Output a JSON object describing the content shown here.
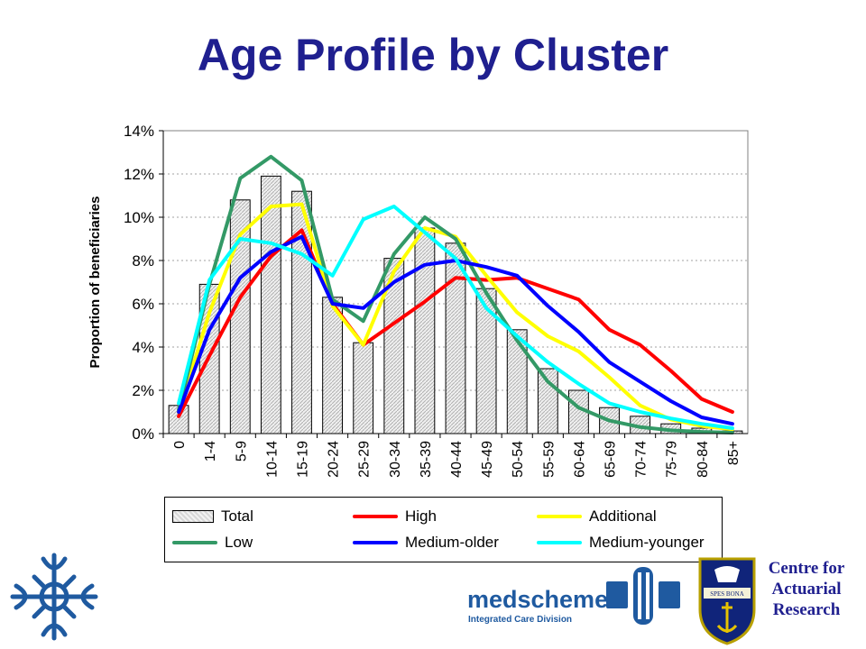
{
  "slide": {
    "title": "Age Profile by Cluster"
  },
  "chart_data": {
    "type": "bar",
    "title": "",
    "ylabel": "Proportion of beneficiaries",
    "xlabel": "",
    "ylim": [
      0,
      14
    ],
    "y_ticks": [
      "0%",
      "2%",
      "4%",
      "6%",
      "8%",
      "10%",
      "12%",
      "14%"
    ],
    "grid": true,
    "legend_position": "bottom",
    "categories": [
      "0",
      "1-4",
      "5-9",
      "10-14",
      "15-19",
      "20-24",
      "25-29",
      "30-34",
      "35-39",
      "40-44",
      "45-49",
      "50-54",
      "55-59",
      "60-64",
      "65-69",
      "70-74",
      "75-79",
      "80-84",
      "85+"
    ],
    "bars": {
      "name": "Total",
      "values": [
        1.3,
        6.9,
        10.8,
        11.9,
        11.2,
        6.3,
        4.2,
        8.1,
        9.5,
        8.8,
        6.7,
        4.8,
        3.0,
        2.0,
        1.2,
        0.8,
        0.45,
        0.25,
        0.12
      ]
    },
    "series": [
      {
        "name": "High",
        "color": "#ff0000",
        "values": [
          0.8,
          3.6,
          6.3,
          8.2,
          9.4,
          6.0,
          4.1,
          5.1,
          6.1,
          7.2,
          7.1,
          7.2,
          6.7,
          6.2,
          4.8,
          4.1,
          2.9,
          1.6,
          1.0
        ]
      },
      {
        "name": "Additional",
        "color": "#ffff00",
        "values": [
          1.0,
          5.6,
          9.2,
          10.5,
          10.6,
          5.9,
          4.1,
          7.5,
          9.5,
          9.1,
          7.3,
          5.6,
          4.5,
          3.8,
          2.6,
          1.3,
          0.65,
          0.35,
          0.2
        ]
      },
      {
        "name": "Low",
        "color": "#339966",
        "values": [
          1.1,
          6.9,
          11.8,
          12.8,
          11.7,
          6.2,
          5.2,
          8.3,
          10.0,
          9.0,
          6.5,
          4.3,
          2.4,
          1.2,
          0.6,
          0.3,
          0.15,
          0.08,
          0.04
        ]
      },
      {
        "name": "Medium-older",
        "color": "#0000ff",
        "values": [
          1.0,
          4.8,
          7.2,
          8.4,
          9.1,
          6.0,
          5.8,
          7.0,
          7.8,
          8.0,
          7.7,
          7.3,
          5.9,
          4.7,
          3.3,
          2.4,
          1.5,
          0.75,
          0.45
        ]
      },
      {
        "name": "Medium-younger",
        "color": "#00ffff",
        "values": [
          1.4,
          7.1,
          9.0,
          8.8,
          8.3,
          7.3,
          9.9,
          10.5,
          9.3,
          8.1,
          5.8,
          4.5,
          3.3,
          2.3,
          1.4,
          1.0,
          0.7,
          0.45,
          0.25
        ]
      }
    ]
  },
  "legend": {
    "total": "Total",
    "high": "High",
    "additional": "Additional",
    "low": "Low",
    "medium_older": "Medium-older",
    "medium_younger": "Medium-younger"
  },
  "logos": {
    "medscheme_name": "medscheme",
    "medscheme_sub": "Integrated Care Division",
    "car_line1": "Centre for",
    "car_line2": "Actuarial",
    "car_line3": "Research",
    "crest_scroll": "SPES BONA"
  },
  "colors": {
    "title": "#1f1f8f",
    "car_text": "#1f1f8f",
    "medscheme": "#1f5aa0",
    "crest_blue": "#10247a"
  }
}
